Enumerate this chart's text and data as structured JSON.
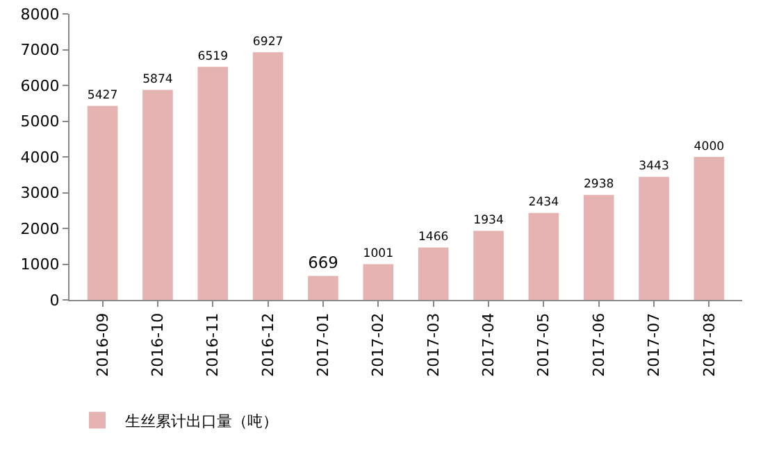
{
  "chart_data": {
    "type": "bar",
    "categories": [
      "2016-09",
      "2016-10",
      "2016-11",
      "2016-12",
      "2017-01",
      "2017-02",
      "2017-03",
      "2017-04",
      "2017-05",
      "2017-06",
      "2017-07",
      "2017-08"
    ],
    "series": [
      {
        "name": "生丝累计出口量（吨）",
        "color": "#e6b3b3",
        "values": [
          5427,
          5874,
          6519,
          6927,
          669,
          1001,
          1466,
          1934,
          2434,
          2938,
          3443,
          4000
        ]
      }
    ],
    "ylim": [
      0,
      8000
    ],
    "yticks": [
      0,
      1000,
      2000,
      3000,
      4000,
      5000,
      6000,
      7000,
      8000
    ],
    "grid": false,
    "legend": "bottom left",
    "data_labels": true
  }
}
